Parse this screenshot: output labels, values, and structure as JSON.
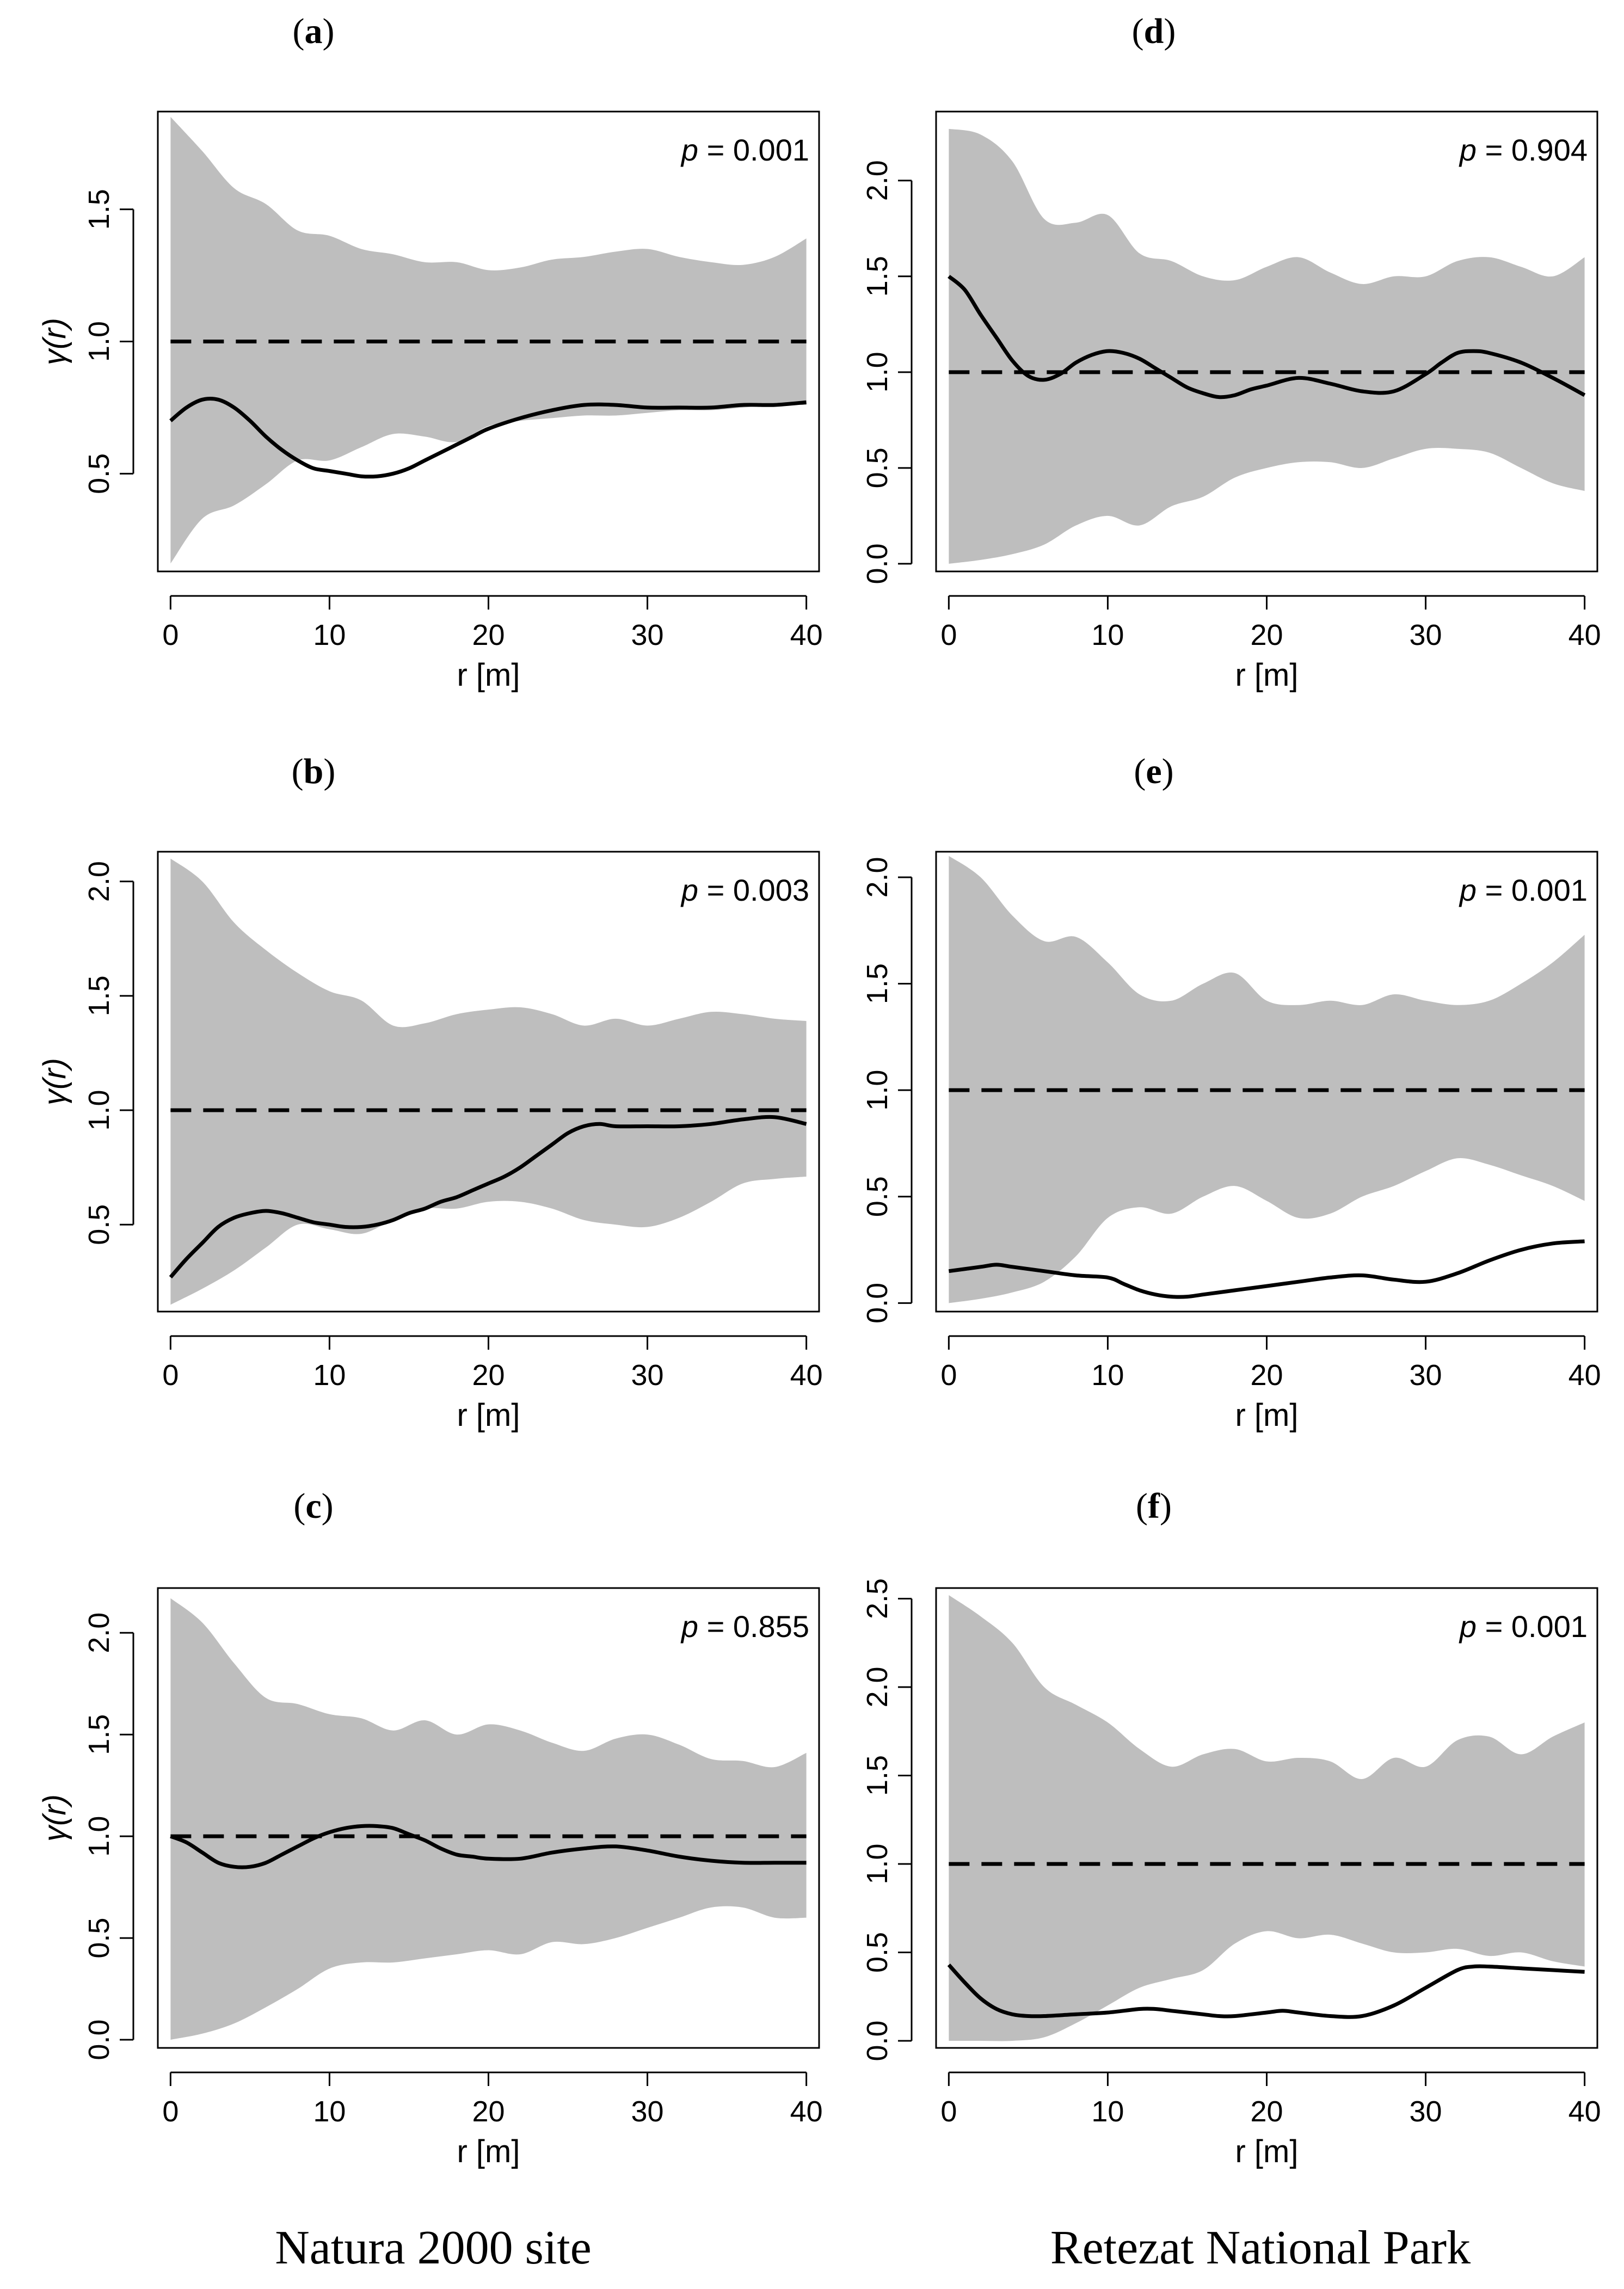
{
  "captions": {
    "left": "Natura 2000 site",
    "right": "Retezat National Park"
  },
  "colors": {
    "envelope": "#bebebe",
    "observed": "#000000",
    "theoretical": "#000000",
    "frame": "#000000"
  },
  "chart_data": [
    {
      "id": "a",
      "type": "line",
      "label": "a",
      "pvalue_label": "p = 0.001",
      "p_symbol": "p",
      "p_rest": " = 0.001",
      "xlabel": "r [m]",
      "ylabel": "γ(r)",
      "xlim": [
        -0.8,
        40.8
      ],
      "ylim": [
        0.13,
        1.87
      ],
      "xticks": [
        0,
        10,
        20,
        30,
        40
      ],
      "yticks": [
        0.5,
        1.0,
        1.5
      ],
      "ytick_labels": [
        "0.5",
        "1.0",
        "1.5"
      ],
      "theoretical": 1.0,
      "envelope_x": [
        0,
        2,
        4,
        6,
        8,
        10,
        12,
        14,
        16,
        18,
        20,
        22,
        24,
        26,
        28,
        30,
        32,
        34,
        36,
        38,
        40
      ],
      "envelope_upper": [
        1.85,
        1.72,
        1.58,
        1.52,
        1.42,
        1.4,
        1.35,
        1.33,
        1.3,
        1.3,
        1.27,
        1.28,
        1.31,
        1.32,
        1.34,
        1.35,
        1.32,
        1.3,
        1.29,
        1.32,
        1.39
      ],
      "envelope_lower": [
        0.16,
        0.33,
        0.38,
        0.46,
        0.55,
        0.55,
        0.6,
        0.65,
        0.64,
        0.62,
        0.68,
        0.7,
        0.71,
        0.72,
        0.72,
        0.73,
        0.74,
        0.74,
        0.75,
        0.76,
        0.76
      ],
      "observed_x": [
        0,
        1,
        2,
        3,
        4,
        5,
        6,
        7,
        8,
        9,
        10,
        11,
        12,
        13,
        14,
        15,
        16,
        17,
        18,
        19,
        20,
        22,
        24,
        26,
        28,
        30,
        32,
        34,
        36,
        38,
        40
      ],
      "observed_y": [
        0.7,
        0.75,
        0.78,
        0.78,
        0.75,
        0.7,
        0.64,
        0.59,
        0.55,
        0.52,
        0.51,
        0.5,
        0.49,
        0.49,
        0.5,
        0.52,
        0.55,
        0.58,
        0.61,
        0.64,
        0.67,
        0.71,
        0.74,
        0.76,
        0.76,
        0.75,
        0.75,
        0.75,
        0.76,
        0.76,
        0.77
      ]
    },
    {
      "id": "b",
      "type": "line",
      "label": "b",
      "pvalue_label": "p = 0.003",
      "p_symbol": "p",
      "p_rest": " = 0.003",
      "xlabel": "r [m]",
      "ylabel": "γ(r)",
      "xlim": [
        -0.8,
        40.8
      ],
      "ylim": [
        0.12,
        2.13
      ],
      "xticks": [
        0,
        10,
        20,
        30,
        40
      ],
      "yticks": [
        0.5,
        1.0,
        1.5,
        2.0
      ],
      "ytick_labels": [
        "0.5",
        "1.0",
        "1.5",
        "2.0"
      ],
      "theoretical": 1.0,
      "envelope_x": [
        0,
        2,
        4,
        6,
        8,
        10,
        12,
        14,
        16,
        18,
        20,
        22,
        24,
        26,
        28,
        30,
        32,
        34,
        36,
        38,
        40
      ],
      "envelope_upper": [
        2.1,
        2.0,
        1.82,
        1.7,
        1.6,
        1.52,
        1.48,
        1.37,
        1.38,
        1.42,
        1.44,
        1.45,
        1.42,
        1.37,
        1.4,
        1.37,
        1.4,
        1.43,
        1.42,
        1.4,
        1.39
      ],
      "envelope_lower": [
        0.15,
        0.22,
        0.3,
        0.4,
        0.5,
        0.48,
        0.46,
        0.52,
        0.57,
        0.57,
        0.6,
        0.6,
        0.57,
        0.52,
        0.5,
        0.49,
        0.53,
        0.6,
        0.68,
        0.7,
        0.71
      ],
      "observed_x": [
        0,
        1,
        2,
        3,
        4,
        5,
        6,
        7,
        8,
        9,
        10,
        11,
        12,
        13,
        14,
        15,
        16,
        17,
        18,
        19,
        20,
        21,
        22,
        23,
        24,
        25,
        26,
        27,
        28,
        30,
        32,
        34,
        36,
        38,
        40
      ],
      "observed_y": [
        0.27,
        0.35,
        0.42,
        0.49,
        0.53,
        0.55,
        0.56,
        0.55,
        0.53,
        0.51,
        0.5,
        0.49,
        0.49,
        0.5,
        0.52,
        0.55,
        0.57,
        0.6,
        0.62,
        0.65,
        0.68,
        0.71,
        0.75,
        0.8,
        0.85,
        0.9,
        0.93,
        0.94,
        0.93,
        0.93,
        0.93,
        0.94,
        0.96,
        0.97,
        0.94
      ]
    },
    {
      "id": "c",
      "type": "line",
      "label": "c",
      "pvalue_label": "p = 0.855",
      "p_symbol": "p",
      "p_rest": " = 0.855",
      "xlabel": "r [m]",
      "ylabel": "γ(r)",
      "xlim": [
        -0.8,
        40.8
      ],
      "ylim": [
        -0.04,
        2.22
      ],
      "xticks": [
        0,
        10,
        20,
        30,
        40
      ],
      "yticks": [
        0.0,
        0.5,
        1.0,
        1.5,
        2.0
      ],
      "ytick_labels": [
        "0.0",
        "0.5",
        "1.0",
        "1.5",
        "2.0"
      ],
      "theoretical": 1.0,
      "envelope_x": [
        0,
        2,
        4,
        6,
        8,
        10,
        12,
        14,
        16,
        18,
        20,
        22,
        24,
        26,
        28,
        30,
        32,
        34,
        36,
        38,
        40
      ],
      "envelope_upper": [
        2.17,
        2.05,
        1.85,
        1.68,
        1.65,
        1.6,
        1.58,
        1.52,
        1.57,
        1.5,
        1.55,
        1.52,
        1.46,
        1.42,
        1.48,
        1.5,
        1.45,
        1.38,
        1.37,
        1.34,
        1.41
      ],
      "envelope_lower": [
        0.0,
        0.03,
        0.08,
        0.16,
        0.25,
        0.35,
        0.38,
        0.38,
        0.4,
        0.42,
        0.44,
        0.42,
        0.48,
        0.47,
        0.5,
        0.55,
        0.6,
        0.65,
        0.65,
        0.6,
        0.6
      ],
      "observed_x": [
        0,
        1,
        2,
        3,
        4,
        5,
        6,
        7,
        8,
        9,
        10,
        11,
        12,
        13,
        14,
        15,
        16,
        17,
        18,
        19,
        20,
        22,
        24,
        26,
        28,
        30,
        32,
        34,
        36,
        38,
        40
      ],
      "observed_y": [
        1.0,
        0.97,
        0.92,
        0.87,
        0.85,
        0.85,
        0.87,
        0.91,
        0.95,
        0.99,
        1.02,
        1.04,
        1.05,
        1.05,
        1.04,
        1.01,
        0.98,
        0.94,
        0.91,
        0.9,
        0.89,
        0.89,
        0.92,
        0.94,
        0.95,
        0.93,
        0.9,
        0.88,
        0.87,
        0.87,
        0.87
      ]
    },
    {
      "id": "d",
      "type": "line",
      "label": "d",
      "pvalue_label": "p = 0.904",
      "p_symbol": "p",
      "p_rest": " = 0.904",
      "xlabel": "r [m]",
      "ylabel": "",
      "xlim": [
        -0.8,
        40.8
      ],
      "ylim": [
        -0.04,
        2.36
      ],
      "xticks": [
        0,
        10,
        20,
        30,
        40
      ],
      "yticks": [
        0.0,
        0.5,
        1.0,
        1.5,
        2.0
      ],
      "ytick_labels": [
        "0.0",
        "0.5",
        "1.0",
        "1.5",
        "2.0"
      ],
      "theoretical": 1.0,
      "envelope_x": [
        0,
        2,
        4,
        6,
        8,
        10,
        12,
        14,
        16,
        18,
        20,
        22,
        24,
        26,
        28,
        30,
        32,
        34,
        36,
        38,
        40
      ],
      "envelope_upper": [
        2.27,
        2.24,
        2.1,
        1.8,
        1.78,
        1.82,
        1.62,
        1.58,
        1.5,
        1.48,
        1.55,
        1.6,
        1.52,
        1.46,
        1.5,
        1.5,
        1.58,
        1.6,
        1.55,
        1.5,
        1.6
      ],
      "envelope_lower": [
        0.0,
        0.02,
        0.05,
        0.1,
        0.2,
        0.25,
        0.2,
        0.3,
        0.35,
        0.45,
        0.5,
        0.53,
        0.53,
        0.5,
        0.55,
        0.6,
        0.6,
        0.58,
        0.5,
        0.42,
        0.38
      ],
      "observed_x": [
        0,
        1,
        2,
        3,
        4,
        5,
        6,
        7,
        8,
        9,
        10,
        11,
        12,
        13,
        14,
        15,
        16,
        17,
        18,
        19,
        20,
        22,
        24,
        26,
        28,
        30,
        31,
        32,
        33,
        34,
        36,
        38,
        40
      ],
      "observed_y": [
        1.5,
        1.43,
        1.3,
        1.18,
        1.06,
        0.98,
        0.96,
        0.99,
        1.05,
        1.09,
        1.11,
        1.1,
        1.07,
        1.02,
        0.97,
        0.92,
        0.89,
        0.87,
        0.88,
        0.91,
        0.93,
        0.97,
        0.94,
        0.9,
        0.9,
        0.99,
        1.05,
        1.1,
        1.11,
        1.1,
        1.05,
        0.97,
        0.88
      ]
    },
    {
      "id": "e",
      "type": "line",
      "label": "e",
      "pvalue_label": "p = 0.001",
      "p_symbol": "p",
      "p_rest": " = 0.001",
      "xlabel": "r [m]",
      "ylabel": "",
      "xlim": [
        -0.8,
        40.8
      ],
      "ylim": [
        -0.04,
        2.12
      ],
      "xticks": [
        0,
        10,
        20,
        30,
        40
      ],
      "yticks": [
        0.0,
        0.5,
        1.0,
        1.5,
        2.0
      ],
      "ytick_labels": [
        "0.0",
        "0.5",
        "1.0",
        "1.5",
        "2.0"
      ],
      "theoretical": 1.0,
      "envelope_x": [
        0,
        2,
        4,
        6,
        8,
        10,
        12,
        14,
        16,
        18,
        20,
        22,
        24,
        26,
        28,
        30,
        32,
        34,
        36,
        38,
        40
      ],
      "envelope_upper": [
        2.1,
        2.0,
        1.82,
        1.7,
        1.72,
        1.6,
        1.45,
        1.42,
        1.5,
        1.55,
        1.42,
        1.4,
        1.42,
        1.4,
        1.45,
        1.42,
        1.4,
        1.42,
        1.5,
        1.6,
        1.73
      ],
      "envelope_lower": [
        0.0,
        0.02,
        0.05,
        0.1,
        0.22,
        0.4,
        0.45,
        0.42,
        0.5,
        0.55,
        0.48,
        0.4,
        0.42,
        0.5,
        0.55,
        0.62,
        0.68,
        0.65,
        0.6,
        0.55,
        0.48
      ],
      "observed_x": [
        0,
        2,
        3,
        4,
        6,
        8,
        10,
        11,
        12,
        13,
        14,
        15,
        16,
        18,
        20,
        22,
        24,
        26,
        28,
        30,
        32,
        34,
        36,
        38,
        40
      ],
      "observed_y": [
        0.15,
        0.17,
        0.18,
        0.17,
        0.15,
        0.13,
        0.12,
        0.09,
        0.06,
        0.04,
        0.03,
        0.03,
        0.04,
        0.06,
        0.08,
        0.1,
        0.12,
        0.13,
        0.11,
        0.1,
        0.14,
        0.2,
        0.25,
        0.28,
        0.29
      ]
    },
    {
      "id": "f",
      "type": "line",
      "label": "f",
      "pvalue_label": "p = 0.001",
      "p_symbol": "p",
      "p_rest": " = 0.001",
      "xlabel": "r [m]",
      "ylabel": "",
      "xlim": [
        -0.8,
        40.8
      ],
      "ylim": [
        -0.04,
        2.56
      ],
      "xticks": [
        0,
        10,
        20,
        30,
        40
      ],
      "yticks": [
        0.0,
        0.5,
        1.0,
        1.5,
        2.0,
        2.5
      ],
      "ytick_labels": [
        "0.0",
        "0.5",
        "1.0",
        "1.5",
        "2.0",
        "2.5"
      ],
      "theoretical": 1.0,
      "envelope_x": [
        0,
        2,
        4,
        6,
        8,
        10,
        12,
        14,
        16,
        18,
        20,
        22,
        24,
        26,
        28,
        30,
        32,
        34,
        36,
        38,
        40
      ],
      "envelope_upper": [
        2.52,
        2.4,
        2.25,
        2.0,
        1.9,
        1.8,
        1.65,
        1.55,
        1.62,
        1.65,
        1.58,
        1.6,
        1.58,
        1.48,
        1.6,
        1.55,
        1.7,
        1.72,
        1.62,
        1.72,
        1.8
      ],
      "envelope_lower": [
        0.0,
        0.0,
        0.0,
        0.02,
        0.1,
        0.2,
        0.3,
        0.35,
        0.4,
        0.55,
        0.62,
        0.58,
        0.6,
        0.55,
        0.5,
        0.5,
        0.52,
        0.48,
        0.5,
        0.45,
        0.42
      ],
      "observed_x": [
        0,
        1,
        2,
        3,
        4,
        5,
        6,
        8,
        10,
        12,
        13,
        14,
        16,
        17,
        18,
        20,
        21,
        22,
        24,
        26,
        28,
        30,
        32,
        33,
        34,
        36,
        38,
        40
      ],
      "observed_y": [
        0.43,
        0.33,
        0.24,
        0.18,
        0.15,
        0.14,
        0.14,
        0.15,
        0.16,
        0.18,
        0.18,
        0.17,
        0.15,
        0.14,
        0.14,
        0.16,
        0.17,
        0.16,
        0.14,
        0.14,
        0.2,
        0.3,
        0.4,
        0.42,
        0.42,
        0.41,
        0.4,
        0.39
      ]
    }
  ]
}
